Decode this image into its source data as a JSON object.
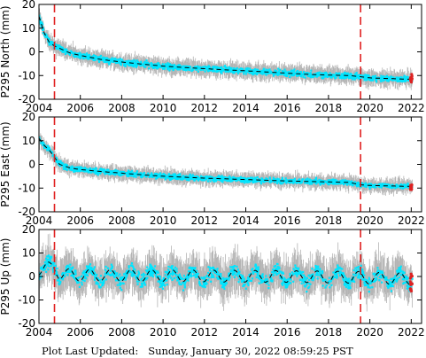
{
  "footer": {
    "label": "Plot Last Updated:",
    "timestamp": "Sunday, January 30, 2022 08:59:25 PST"
  },
  "colors": {
    "error_bars": "#b4b4b4",
    "points": "#00e5ff",
    "model_line": "#000000",
    "event_lines": "#e02020",
    "recent_points": "#dd2222"
  },
  "chart_data": [
    {
      "type": "scatter",
      "ylabel": "P295 North (mm)",
      "xlim": [
        2004,
        2022.5
      ],
      "ylim": [
        -20,
        20
      ],
      "x_ticks": [
        "2004",
        "2006",
        "2008",
        "2010",
        "2012",
        "2014",
        "2016",
        "2018",
        "2020",
        "2022"
      ],
      "y_ticks": [
        "-20",
        "-10",
        "0",
        "10",
        "20"
      ],
      "event_lines_x": [
        2004.75,
        2019.55
      ],
      "series": [
        {
          "x": [
            2004.0,
            2004.25,
            2004.5,
            2004.75,
            2005.0,
            2005.5,
            2006.0,
            2007.0,
            2008.0,
            2009.0,
            2010.0,
            2011.0,
            2012.0,
            2013.0,
            2014.0,
            2015.0,
            2016.0,
            2017.0,
            2018.0,
            2019.0,
            2019.55,
            2020.0,
            2021.0,
            2022.0
          ],
          "y": [
            15,
            8,
            4,
            2.5,
            1.5,
            -0.5,
            -1.5,
            -3.2,
            -4.3,
            -5.2,
            -6,
            -6.6,
            -7.1,
            -7.6,
            -8,
            -8.5,
            -9,
            -9.5,
            -9.8,
            -10,
            -10.5,
            -11,
            -11.3,
            -11.6
          ]
        }
      ],
      "spread": 2.5
    },
    {
      "type": "scatter",
      "ylabel": "P295 East (mm)",
      "xlim": [
        2004,
        2022.5
      ],
      "ylim": [
        -20,
        20
      ],
      "x_ticks": [
        "2004",
        "2006",
        "2008",
        "2010",
        "2012",
        "2014",
        "2016",
        "2018",
        "2020",
        "2022"
      ],
      "y_ticks": [
        "-20",
        "-10",
        "0",
        "10",
        "20"
      ],
      "event_lines_x": [
        2004.75,
        2019.55
      ],
      "series": [
        {
          "x": [
            2004.0,
            2004.25,
            2004.5,
            2004.75,
            2005.0,
            2005.5,
            2006.0,
            2007.0,
            2008.0,
            2009.0,
            2010.0,
            2011.0,
            2012.0,
            2013.0,
            2014.0,
            2015.0,
            2016.0,
            2017.0,
            2018.0,
            2019.0,
            2019.55,
            2020.0,
            2021.0,
            2022.0
          ],
          "y": [
            11,
            8,
            6,
            3,
            0,
            -1.5,
            -2.2,
            -3,
            -3.7,
            -4.4,
            -5,
            -5.4,
            -5.8,
            -6.1,
            -6.4,
            -6.7,
            -7,
            -7.2,
            -7.4,
            -7.6,
            -8.6,
            -8.9,
            -9.1,
            -9.3
          ]
        }
      ],
      "spread": 2.2
    },
    {
      "type": "scatter",
      "ylabel": "P295 Up (mm)",
      "xlim": [
        2004,
        2022.5
      ],
      "ylim": [
        -20,
        20
      ],
      "x_ticks": [
        "2004",
        "2006",
        "2008",
        "2010",
        "2012",
        "2014",
        "2016",
        "2018",
        "2020",
        "2022"
      ],
      "y_ticks": [
        "-20",
        "-10",
        "0",
        "10",
        "20"
      ],
      "event_lines_x": [
        2004.75,
        2019.55
      ],
      "series": [
        {
          "x": [
            2004.0,
            2004.75,
            2005.0,
            2006.0,
            2008.0,
            2010.0,
            2012.0,
            2014.0,
            2016.0,
            2018.0,
            2019.55,
            2020.0,
            2022.0
          ],
          "y": [
            3,
            4,
            1,
            0.5,
            0.4,
            0.3,
            0.2,
            0.1,
            0,
            -0.2,
            -0.4,
            -0.7,
            -1
          ]
        }
      ],
      "seasonal_amplitude": 2.5,
      "spread": 6
    }
  ]
}
